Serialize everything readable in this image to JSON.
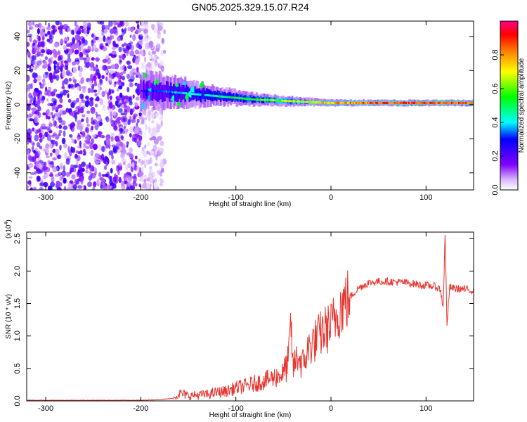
{
  "title": "GN05.2025.329.15.07.R24",
  "colorbar": {
    "label": "Normalized spectral amplitude",
    "ticks": [
      "0.0",
      "0.2",
      "0.4",
      "0.6",
      "0.8"
    ],
    "tick_values": [
      0.0,
      0.2,
      0.4,
      0.6,
      0.8
    ],
    "range": [
      0,
      1
    ]
  },
  "colors": {
    "snr_line": "#e8352e",
    "frame": "#000000",
    "bright_line": "#e8352e"
  },
  "chart_data": [
    {
      "type": "heatmap",
      "xlabel": "Height of straight line (km)",
      "ylabel": "Frequency (Hz)",
      "xlim": [
        -320,
        150
      ],
      "ylim": [
        -50,
        49
      ],
      "x_ticks": [
        -300,
        -200,
        -100,
        0,
        100
      ],
      "x_tick_labels": [
        "-300",
        "-200",
        "-100",
        "0",
        "100"
      ],
      "y_ticks": [
        -40,
        -20,
        0,
        20,
        40
      ],
      "y_tick_labels": [
        "-40",
        "-20",
        "0",
        "20",
        "40"
      ],
      "noise_region": [
        -320,
        -185
      ],
      "signal_track": {
        "x": [
          -200,
          -180,
          -160,
          -140,
          -120,
          -100,
          -80,
          -60,
          -40,
          -20,
          0,
          20,
          40,
          60,
          80,
          100,
          120,
          150
        ],
        "freq": [
          8,
          8,
          7,
          6,
          5,
          4,
          3,
          2.5,
          2,
          1.5,
          1,
          1,
          1,
          1,
          1,
          1,
          1,
          1
        ],
        "bandwidth": [
          12,
          11,
          10,
          8,
          6,
          5,
          4,
          3.5,
          3,
          2.5,
          2.2,
          2,
          2,
          2,
          2,
          2,
          2,
          2
        ],
        "amplitude": [
          0.25,
          0.35,
          0.4,
          0.45,
          0.5,
          0.55,
          0.6,
          0.65,
          0.7,
          0.75,
          0.8,
          0.85,
          0.88,
          0.9,
          0.92,
          0.92,
          0.9,
          0.9
        ]
      }
    },
    {
      "type": "line",
      "xlabel": "Height of straight line (km)",
      "ylabel": "SNR (10 * v/v)",
      "scale_label": "(x10",
      "scale_exponent": "4",
      "scale_suffix": ")",
      "xlim": [
        -320,
        150
      ],
      "ylim": [
        0,
        2.6
      ],
      "x_ticks": [
        -300,
        -200,
        -100,
        0,
        100
      ],
      "x_tick_labels": [
        "-300",
        "-200",
        "-100",
        "0",
        "100"
      ],
      "y_ticks": [
        0,
        0.5,
        1.0,
        1.5,
        2.0,
        2.5
      ],
      "y_tick_labels": [
        "0.0",
        "0.5",
        "1.0",
        "1.5",
        "2.0",
        "2.5"
      ],
      "series": [
        {
          "name": "SNR",
          "x": [
            -320,
            -300,
            -280,
            -260,
            -240,
            -220,
            -200,
            -180,
            -165,
            -160,
            -150,
            -140,
            -130,
            -120,
            -110,
            -100,
            -90,
            -80,
            -70,
            -60,
            -50,
            -45,
            -42,
            -40,
            -35,
            -30,
            -25,
            -20,
            -15,
            -10,
            -5,
            0,
            5,
            10,
            20,
            30,
            40,
            50,
            60,
            70,
            80,
            90,
            95,
            100,
            110,
            115,
            118,
            120,
            122,
            125,
            130,
            140,
            150
          ],
          "values": [
            0.01,
            0.01,
            0.01,
            0.01,
            0.01,
            0.01,
            0.01,
            0.02,
            0.04,
            0.12,
            0.08,
            0.09,
            0.1,
            0.13,
            0.15,
            0.2,
            0.23,
            0.27,
            0.31,
            0.36,
            0.42,
            0.6,
            1.2,
            0.5,
            0.7,
            0.55,
            0.75,
            0.9,
            0.95,
            1.05,
            1.1,
            1.15,
            1.3,
            1.45,
            1.6,
            1.75,
            1.82,
            1.84,
            1.84,
            1.83,
            1.82,
            1.8,
            1.78,
            1.78,
            1.76,
            1.72,
            1.45,
            2.55,
            1.2,
            1.75,
            1.73,
            1.72,
            1.7
          ]
        }
      ]
    }
  ]
}
